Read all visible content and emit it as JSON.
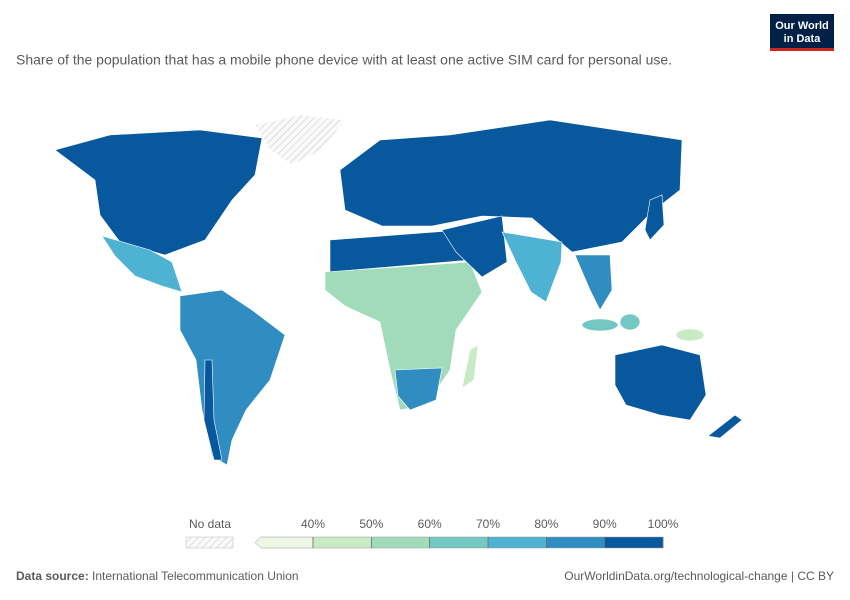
{
  "logo": {
    "line1": "Our World",
    "line2": "in Data"
  },
  "subtitle": "Share of the population that has a mobile phone device with at least one active SIM card for personal use.",
  "legend": {
    "no_data": "No data",
    "ticks": [
      {
        "value": 40,
        "label": "40%"
      },
      {
        "value": 50,
        "label": "50%"
      },
      {
        "value": 60,
        "label": "60%"
      },
      {
        "value": 70,
        "label": "70%"
      },
      {
        "value": 80,
        "label": "80%"
      },
      {
        "value": 90,
        "label": "90%"
      },
      {
        "value": 100,
        "label": "100%"
      }
    ],
    "colors": [
      "#eef7e3",
      "#c8ebc6",
      "#a2dbb9",
      "#73c8c4",
      "#4eb3d3",
      "#2f8dc1",
      "#08589e"
    ]
  },
  "footer": {
    "source_label": "Data source:",
    "source": "International Telecommunication Union",
    "url": "OurWorldinData.org/technological-change | CC BY"
  }
}
